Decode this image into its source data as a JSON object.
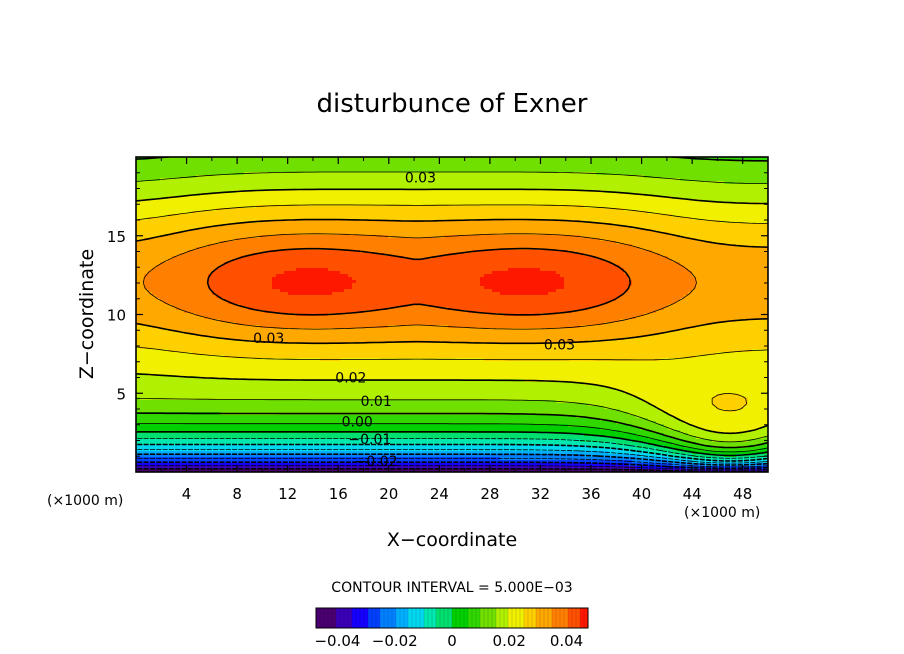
{
  "chart_data": {
    "type": "heatmap",
    "subtype": "filled-contour",
    "title": "disturbunce of Exner",
    "xlabel": "X−coordinate",
    "ylabel": "Z−coordinate",
    "x_unit": "(×1000 m)",
    "y_unit": "(×1000 m)",
    "xlim": [
      0,
      50
    ],
    "ylim": [
      0,
      20
    ],
    "xticks": [
      4,
      8,
      12,
      16,
      20,
      24,
      28,
      32,
      36,
      40,
      44,
      48
    ],
    "xtick_labels": [
      "4",
      "8",
      "12",
      "16",
      "20",
      "24",
      "28",
      "32",
      "36",
      "40",
      "44",
      "48"
    ],
    "yticks": [
      5,
      10,
      15
    ],
    "ytick_labels": [
      "5",
      "10",
      "15"
    ],
    "contour_interval_text": "CONTOUR INTERVAL = 5.000E−03",
    "contour_interval": 0.005,
    "levels_range": [
      -0.045,
      0.045
    ],
    "contour_labels": [
      {
        "text": "0.03",
        "x": 22.5,
        "z": 18.7
      },
      {
        "text": "0.03",
        "x": 10.5,
        "z": 8.5
      },
      {
        "text": "0.03",
        "x": 33.5,
        "z": 8.1
      },
      {
        "text": "0.02",
        "x": 17.0,
        "z": 6.0
      },
      {
        "text": "0.01",
        "x": 19.0,
        "z": 4.5
      },
      {
        "text": "0.00",
        "x": 17.5,
        "z": 3.2
      },
      {
        "text": "−0.01",
        "x": 18.5,
        "z": 2.1
      },
      {
        "text": "−0.02",
        "x": 19.0,
        "z": 0.7
      }
    ],
    "colorbar": {
      "ticks": [
        -0.04,
        -0.02,
        0,
        0.02,
        0.04
      ],
      "tick_labels": [
        "−0.04",
        "−0.02",
        "0",
        "0.02",
        "0.04"
      ]
    },
    "colors": {
      "-0.045": "#4a0070",
      "-0.04": "#3a00b8",
      "-0.035": "#1500ff",
      "-0.03": "#0040ff",
      "-0.025": "#0080ff",
      "-0.02": "#00b0ff",
      "-0.015": "#00d8f0",
      "-0.01": "#00e8b0",
      "-0.005": "#00e070",
      "0": "#00d000",
      "0.005": "#30d800",
      "0.01": "#70e000",
      "0.015": "#b0f000",
      "0.02": "#f0f000",
      "0.025": "#ffd000",
      "0.03": "#ffa800",
      "0.035": "#ff8000",
      "0.04": "#ff5000",
      "0.045": "#ff1800"
    }
  }
}
